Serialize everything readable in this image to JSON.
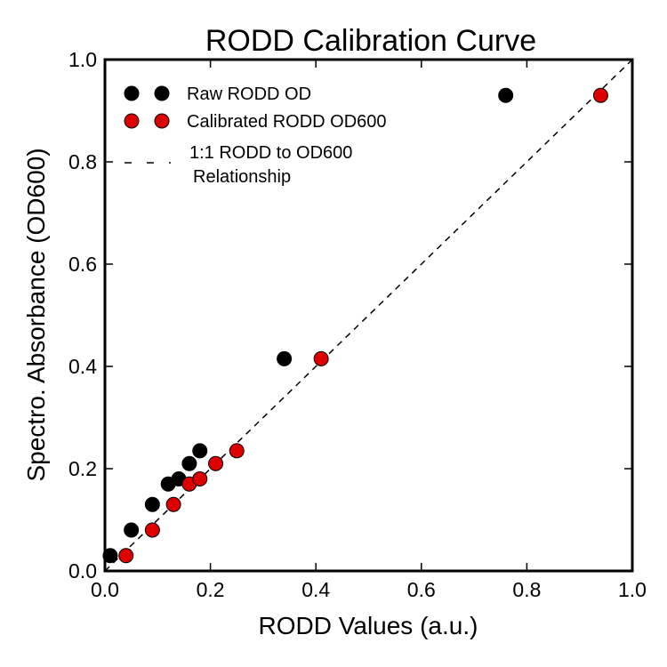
{
  "chart_data": {
    "type": "scatter",
    "title": "RODD Calibration Curve",
    "xlabel": "RODD Values (a.u.)",
    "ylabel": "Spectro. Absorbance (OD600)",
    "xlim": [
      0.0,
      1.0
    ],
    "ylim": [
      0.0,
      1.0
    ],
    "xticks": [
      "0.0",
      "0.2",
      "0.4",
      "0.6",
      "0.8",
      "1.0"
    ],
    "yticks": [
      "0.0",
      "0.2",
      "0.4",
      "0.6",
      "0.8",
      "1.0"
    ],
    "grid": false,
    "legend_position": "top-left",
    "series": [
      {
        "name": "Raw RODD OD",
        "color": "#000000",
        "marker": "circle",
        "x": [
          0.01,
          0.05,
          0.09,
          0.12,
          0.14,
          0.16,
          0.18,
          0.34,
          0.76
        ],
        "y": [
          0.03,
          0.08,
          0.13,
          0.17,
          0.18,
          0.21,
          0.235,
          0.415,
          0.93
        ]
      },
      {
        "name": "Calibrated RODD OD600",
        "color": "#dd0000",
        "marker": "circle",
        "x": [
          0.04,
          0.09,
          0.13,
          0.16,
          0.18,
          0.21,
          0.25,
          0.41,
          0.94
        ],
        "y": [
          0.03,
          0.08,
          0.13,
          0.17,
          0.18,
          0.21,
          0.235,
          0.415,
          0.93
        ]
      }
    ],
    "reference_line": {
      "name_lines": [
        "1:1 RODD to OD600",
        "Relationship"
      ],
      "style": "dashed",
      "color": "#000000",
      "x": [
        0.0,
        1.0
      ],
      "y": [
        0.0,
        1.0
      ]
    }
  }
}
